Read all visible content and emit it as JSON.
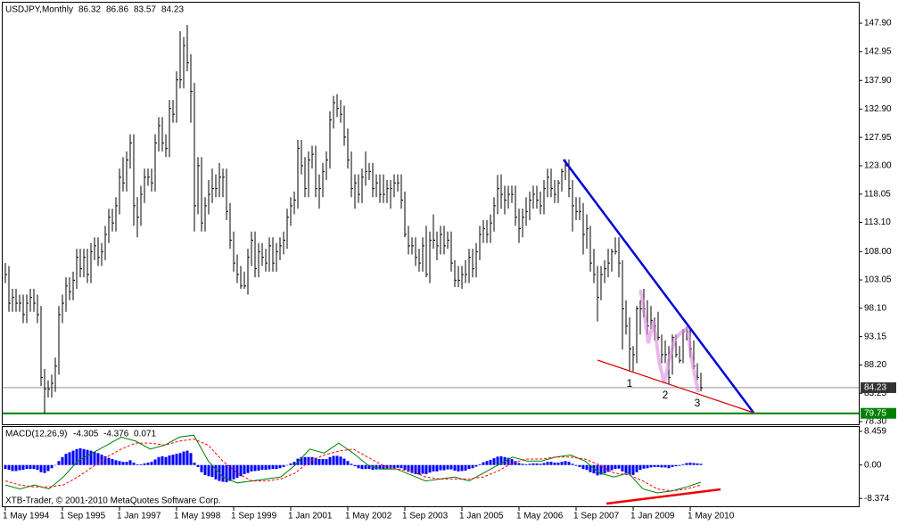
{
  "chart_data": {
    "type": "ohlc",
    "title": "USDJPY,Monthly",
    "quote": [
      86.32,
      86.86,
      83.57,
      84.23
    ],
    "categories": [
      "1 May 1994",
      null,
      null,
      null,
      null,
      null,
      null,
      null,
      null,
      null,
      null,
      null,
      null,
      null,
      null,
      null,
      "1 Sep 1995",
      null,
      null,
      null,
      null,
      null,
      null,
      null,
      null,
      null,
      null,
      null,
      null,
      null,
      null,
      null,
      "1 Jan 1997",
      null,
      null,
      null,
      null,
      null,
      null,
      null,
      null,
      null,
      null,
      null,
      null,
      null,
      null,
      null,
      "1 May 1998",
      null,
      null,
      null,
      null,
      null,
      null,
      null,
      null,
      null,
      null,
      null,
      null,
      null,
      null,
      null,
      "1 Sep 1999",
      null,
      null,
      null,
      null,
      null,
      null,
      null,
      null,
      null,
      null,
      null,
      null,
      null,
      null,
      null,
      "1 Jan 2001",
      null,
      null,
      null,
      null,
      null,
      null,
      null,
      null,
      null,
      null,
      null,
      null,
      null,
      null,
      null,
      "1 May 2002",
      null,
      null,
      null,
      null,
      null,
      null,
      null,
      null,
      null,
      null,
      null,
      null,
      null,
      null,
      null,
      "1 Sep 2003",
      null,
      null,
      null,
      null,
      null,
      null,
      null,
      null,
      null,
      null,
      null,
      null,
      null,
      null,
      null,
      "1 Jan 2005",
      null,
      null,
      null,
      null,
      null,
      null,
      null,
      null,
      null,
      null,
      null,
      null,
      null,
      null,
      null,
      "1 May 2006",
      null,
      null,
      null,
      null,
      null,
      null,
      null,
      null,
      null,
      null,
      null,
      null,
      null,
      null,
      null,
      "1 Sep 2007",
      null,
      null,
      null,
      null,
      null,
      null,
      null,
      null,
      null,
      null,
      null,
      null,
      null,
      null,
      null,
      "1 Jan 2009",
      null,
      null,
      null,
      null,
      null,
      null,
      null,
      null,
      null,
      null,
      null,
      null,
      null,
      null,
      null,
      "1 May 2010",
      null,
      null,
      null
    ],
    "high": [
      106,
      105.5,
      101.5,
      101.5,
      100.5,
      100.5,
      100.5,
      101.5,
      101.5,
      100.5,
      98.5,
      87.5,
      85.5,
      86.5,
      89.5,
      98.5,
      100.5,
      103.5,
      103.5,
      104.5,
      108.5,
      108.5,
      108.5,
      108.5,
      109.5,
      110.5,
      110.5,
      109.5,
      112.5,
      115.5,
      115.5,
      117.5,
      122.5,
      124.5,
      125.5,
      128.5,
      128.5,
      117.5,
      119.5,
      122.5,
      122.5,
      122.5,
      128.5,
      131.5,
      131.5,
      128.5,
      134.5,
      134.5,
      139.5,
      146.5,
      145.5,
      147.6,
      142.5,
      137.5,
      124.5,
      124.5,
      117.5,
      120.5,
      122.5,
      121.5,
      123.5,
      122.5,
      122.5,
      116.5,
      111.5,
      107.5,
      105.5,
      104.5,
      108.5,
      111.5,
      111.5,
      109.5,
      109.5,
      108.5,
      110.5,
      110.5,
      109.5,
      110.5,
      111.5,
      115.5,
      117.5,
      118.5,
      127.5,
      127.5,
      124.5,
      125.5,
      126.5,
      126.5,
      121.5,
      123.5,
      125.5,
      132.5,
      135.2,
      135.5,
      134.5,
      133.5,
      129.5,
      125.5,
      121.5,
      121.5,
      122.5,
      125.5,
      123.5,
      123.5,
      121.5,
      121.5,
      121.5,
      120.5,
      120.5,
      121.5,
      121.5,
      121.5,
      118.5,
      112.5,
      110.5,
      110.5,
      108.5,
      110.5,
      112.5,
      111.5,
      114.5,
      111.5,
      112.5,
      112.5,
      111.5,
      111.5,
      106.5,
      105.5,
      105.5,
      106.5,
      108.5,
      108.5,
      109.5,
      112.5,
      113.5,
      113.5,
      114.5,
      117.5,
      121.4,
      121.5,
      119.5,
      119.5,
      119.5,
      119.5,
      115.5,
      115.5,
      117.5,
      118.5,
      119.5,
      119.5,
      118.5,
      120.5,
      122.5,
      122.5,
      120.5,
      120.5,
      122.5,
      124.1,
      124.1,
      120.5,
      117.5,
      117.5,
      116.5,
      114.5,
      112.5,
      108.5,
      105.5,
      105.5,
      106.5,
      108.5,
      108.5,
      110.5,
      110.5,
      106.5,
      99.5,
      96.5,
      91.5,
      98.5,
      99.5,
      101.5,
      99.5,
      98.5,
      96.5,
      97.5,
      93.5,
      92.5,
      91.5,
      93.5,
      93.5,
      91.5,
      94.5,
      94.9,
      94.5,
      92.5,
      88.5,
      86.86
    ],
    "low": [
      102.5,
      97.5,
      97.5,
      97.5,
      97.5,
      95.5,
      95.5,
      97.5,
      97.5,
      95.5,
      84.5,
      79.75,
      82.5,
      82.5,
      83.5,
      86.5,
      95.5,
      97.5,
      99.5,
      99.5,
      101.5,
      103.5,
      103.5,
      102.5,
      102.5,
      106.5,
      105.5,
      105.5,
      106.5,
      109.5,
      111.5,
      111.5,
      114.5,
      118.5,
      118.5,
      122.5,
      112.5,
      110.5,
      112.5,
      116.5,
      119.5,
      118.5,
      118.5,
      125.5,
      125.5,
      124.5,
      124.5,
      130.5,
      130.5,
      136.5,
      136.5,
      139.5,
      130.5,
      111.5,
      114.5,
      111.5,
      111.5,
      114.5,
      116.5,
      117.5,
      117.5,
      117.5,
      113.5,
      108.5,
      104.5,
      102.5,
      101.5,
      101.5,
      100.5,
      105.5,
      103.5,
      103.5,
      105.5,
      104.5,
      104.5,
      104.5,
      104.5,
      106.5,
      107.5,
      108.5,
      112.5,
      114.5,
      115.5,
      121.5,
      117.5,
      117.5,
      122.5,
      117.5,
      115.5,
      117.5,
      120.5,
      122.5,
      129.5,
      131.5,
      130.5,
      126.5,
      122.5,
      117.5,
      115.5,
      116.5,
      116.5,
      119.5,
      120.5,
      117.5,
      117.5,
      116.5,
      116.5,
      116.5,
      115.5,
      117.5,
      118.5,
      115.5,
      110.5,
      107.5,
      107.5,
      105.5,
      104.5,
      104.5,
      103.5,
      102.5,
      108.5,
      106.5,
      107.5,
      107.5,
      108.5,
      104.5,
      101.8,
      101.8,
      101.5,
      102.5,
      102.5,
      103.5,
      103.5,
      106.5,
      109.5,
      109.5,
      109.5,
      111.5,
      114.5,
      115.5,
      114.5,
      115.5,
      116.5,
      112.5,
      109.5,
      110.5,
      112.5,
      113.5,
      115.5,
      115.5,
      114.5,
      114.5,
      117.5,
      117.5,
      116.5,
      116.5,
      118.5,
      120.5,
      117.5,
      111.5,
      113.5,
      113.5,
      107.5,
      108.5,
      104.5,
      102.5,
      95.8,
      99.5,
      102.5,
      103.5,
      104.5,
      107.5,
      103.5,
      90.9,
      93.5,
      87.2,
      87.1,
      88.5,
      93.5,
      96.5,
      93.5,
      94.5,
      92.5,
      92.5,
      88.5,
      88.5,
      84.8,
      86.5,
      89.5,
      88.5,
      88.5,
      92.5,
      89.5,
      87.5,
      85.5,
      83.57
    ],
    "close": [
      104,
      99,
      100,
      99,
      99,
      97,
      99,
      100,
      99,
      97,
      86,
      84,
      84,
      85,
      88,
      97,
      99,
      102,
      101,
      103,
      107,
      105,
      107,
      104,
      108,
      109,
      107,
      108,
      111,
      114,
      113,
      116,
      121,
      120,
      124,
      127,
      116,
      114,
      118,
      121,
      121,
      120,
      127,
      130,
      127,
      126,
      133,
      132,
      138,
      138,
      144,
      141,
      136,
      116,
      123,
      113,
      116,
      118,
      119,
      119,
      121,
      121,
      115,
      110,
      106,
      104,
      102,
      102,
      107,
      110,
      105,
      108,
      107,
      106,
      109,
      106,
      108,
      109,
      110,
      114,
      116,
      117,
      126,
      123,
      119,
      124,
      125,
      119,
      119,
      122,
      124,
      131,
      134,
      133,
      132,
      128,
      124,
      119,
      120,
      118,
      121,
      122,
      122,
      119,
      120,
      118,
      118,
      119,
      119,
      120,
      120,
      117,
      111,
      109,
      109,
      107,
      106,
      109,
      104,
      110,
      110,
      109,
      111,
      109,
      110,
      106,
      103,
      103,
      104,
      104,
      107,
      105,
      108,
      111,
      112,
      111,
      113,
      116,
      119,
      118,
      117,
      118,
      118,
      114,
      112,
      114,
      115,
      117,
      118,
      117,
      116,
      119,
      121,
      119,
      118,
      120,
      122,
      123,
      119,
      116,
      115,
      115,
      111,
      112,
      106,
      104,
      100,
      104,
      105,
      106,
      108,
      108,
      106,
      98,
      95,
      91,
      90,
      98,
      98,
      98,
      95,
      96,
      95,
      93,
      90,
      90,
      86,
      93,
      90,
      89,
      94,
      94,
      91,
      88,
      86,
      84.23
    ],
    "color": "#000000",
    "ylim": [
      77.68,
      151.33
    ],
    "yticks": [
      {
        "value": 147.9,
        "label": "147.90"
      },
      142.95,
      {
        "value": 137.9,
        "label": "137.90"
      },
      {
        "value": 132.9,
        "label": "132.90"
      },
      127.95,
      {
        "value": 123,
        "label": "123.00"
      },
      118.05,
      {
        "value": 113.1,
        "label": "113.10"
      },
      {
        "value": 108,
        "label": "108.00"
      },
      103.05,
      {
        "value": 98.1,
        "label": "98.10"
      },
      93.15,
      {
        "value": 88.2,
        "label": "88.20"
      },
      83.25,
      {
        "value": 78.3,
        "label": "78.30"
      }
    ],
    "price_lines": [
      {
        "value": 84.23,
        "color": "#999999",
        "box": "#333333"
      },
      {
        "value": 79.75,
        "color": "#008000",
        "box": "#008000"
      }
    ],
    "annotations": [
      "1",
      "2",
      "3"
    ],
    "indicator": {
      "type": "macd",
      "title": "MACD(12,26,9)",
      "readout": [
        -4.305,
        -4.376,
        0.071
      ],
      "ylim": [
        -9.9,
        9.55
      ],
      "yticks": [
        8.459,
        {
          "value": 0,
          "label": "0.00"
        },
        -8.374
      ],
      "histogram": {
        "color": "#0000ff",
        "values": [
          -1,
          -1.2,
          -1.5,
          -1.5,
          -1.3,
          -1.2,
          -1,
          -1,
          -1,
          -1.2,
          -1.8,
          -2,
          -1.5,
          -0.8,
          0,
          1,
          2,
          2.8,
          3.2,
          3.6,
          4,
          4.2,
          4,
          3.8,
          3.6,
          3.3,
          3,
          2.6,
          2.2,
          1.8,
          1.5,
          1.2,
          1,
          0.8,
          0.8,
          1.2,
          0.6,
          0.2,
          0.2,
          0.4,
          0.6,
          0.8,
          1.4,
          2,
          2.2,
          2,
          2.4,
          2.6,
          2.8,
          3,
          3.4,
          3.6,
          3,
          0.6,
          -0.5,
          -1.8,
          -2.5,
          -2.8,
          -3,
          -3.6,
          -4,
          -4.2,
          -4.3,
          -4,
          -3.6,
          -3.2,
          -2.8,
          -2.3,
          -2,
          -1.6,
          -1.5,
          -1.4,
          -1.2,
          -1.2,
          -1.1,
          -1,
          -1,
          -0.8,
          -0.5,
          0,
          0.4,
          0.8,
          1.6,
          2,
          2,
          2,
          2,
          1.8,
          1.5,
          1.5,
          1.5,
          2,
          2.3,
          2.3,
          2.1,
          1.6,
          1,
          0.3,
          -0.3,
          -0.8,
          -1,
          -1,
          -1,
          -1.2,
          -1.1,
          -1.1,
          -1,
          -0.9,
          -0.9,
          -0.8,
          -0.7,
          -0.8,
          -1.2,
          -1.7,
          -2,
          -2.3,
          -2.4,
          -2.2,
          -2.3,
          -1.9,
          -1.6,
          -1.6,
          -1.3,
          -1.3,
          -1.1,
          -1.1,
          -1.4,
          -1.6,
          -1.5,
          -1.4,
          -1,
          -0.8,
          -0.4,
          0.2,
          0.7,
          1,
          1.3,
          1.7,
          2.1,
          2.2,
          2,
          1.8,
          1.5,
          1,
          0.5,
          0.3,
          0.2,
          0.3,
          0.4,
          0.4,
          0.3,
          0.5,
          0.8,
          0.8,
          0.6,
          0.6,
          0.8,
          1,
          0.8,
          0.3,
          -0.2,
          -0.5,
          -1,
          -1.2,
          -1.8,
          -2.1,
          -2.6,
          -2.4,
          -2.1,
          -1.7,
          -1.3,
          -1,
          -0.9,
          -1.6,
          -2,
          -2.4,
          -2.5,
          -1.8,
          -1.2,
          -0.9,
          -0.8,
          -0.6,
          -0.5,
          -0.5,
          -0.6,
          -0.6,
          -0.8,
          -0.5,
          -0.3,
          -0.2,
          0.2,
          0.5,
          0.6,
          0.5,
          0.4,
          0.3
        ]
      },
      "series": [
        {
          "color": "#008000",
          "values": [
            -5,
            -6,
            -5,
            -6,
            -3,
            1,
            3,
            5,
            7,
            6,
            4,
            5,
            7,
            7.5,
            1,
            -3,
            -4.5,
            -4,
            -3.5,
            -3,
            0,
            4,
            3,
            5.5,
            3,
            0,
            -1,
            -1,
            -2.5,
            -4,
            -3.5,
            -3,
            -4,
            -2,
            0,
            2,
            1,
            1,
            2,
            2.5,
            1,
            -2,
            -3,
            -2,
            -6,
            -7,
            -6.5,
            -5.5,
            -4.3
          ]
        },
        {
          "color": "#ff0000",
          "dashed": true,
          "values": [
            -4,
            -5,
            -5.5,
            -5.5,
            -5,
            -3,
            -0.5,
            2,
            4,
            5.5,
            5.5,
            5,
            6,
            6.5,
            5,
            1,
            -2,
            -4,
            -4,
            -3.5,
            -2,
            1,
            2.5,
            3.5,
            4,
            2,
            0,
            -1,
            -1.5,
            -3,
            -3.5,
            -3.5,
            -3.5,
            -3,
            -1.5,
            0.5,
            1.5,
            1.5,
            2,
            2,
            1.5,
            0,
            -2,
            -2.5,
            -4,
            -6,
            -6.5,
            -6,
            -5
          ]
        }
      ]
    },
    "copyright": "XTB-Trader, © 2001-2010 MetaQuotes Software Corp."
  }
}
